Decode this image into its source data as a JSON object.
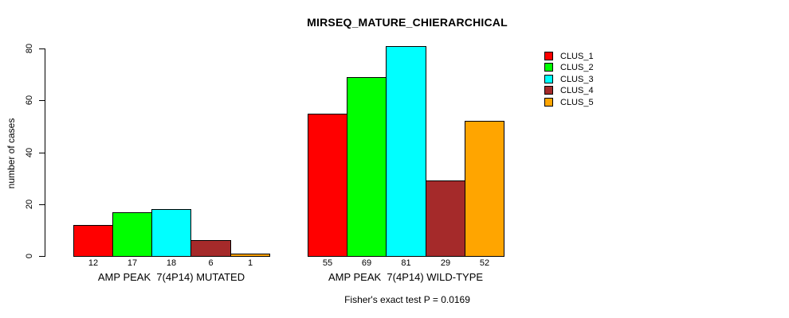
{
  "chart_data": {
    "type": "bar",
    "title": "MIRSEQ_MATURE_CHIERARCHICAL",
    "ylabel": "number of cases",
    "xlabel": "",
    "ylim": [
      0,
      80
    ],
    "yticks": [
      0,
      20,
      40,
      60,
      80
    ],
    "grid": false,
    "legend_position": "top-right",
    "categories": [
      "AMP PEAK  7(4P14) MUTATED",
      "AMP PEAK  7(4P14) WILD-TYPE"
    ],
    "series": [
      {
        "name": "CLUS_1",
        "color": "#FF0000",
        "values": [
          12,
          55
        ]
      },
      {
        "name": "CLUS_2",
        "color": "#00FF00",
        "values": [
          17,
          69
        ]
      },
      {
        "name": "CLUS_3",
        "color": "#00FFFF",
        "values": [
          18,
          81
        ]
      },
      {
        "name": "CLUS_4",
        "color": "#A52A2A",
        "values": [
          6,
          29
        ]
      },
      {
        "name": "CLUS_5",
        "color": "#FFA500",
        "values": [
          1,
          52
        ]
      }
    ],
    "bar_value_labels": [
      [
        12,
        17,
        18,
        6,
        1
      ],
      [
        55,
        69,
        81,
        29,
        52
      ]
    ],
    "annotation": "Fisher's exact test P = 0.0169",
    "bar_border_color": "#000000",
    "background_color": "#FFFFFF",
    "text_color": "#000000"
  }
}
